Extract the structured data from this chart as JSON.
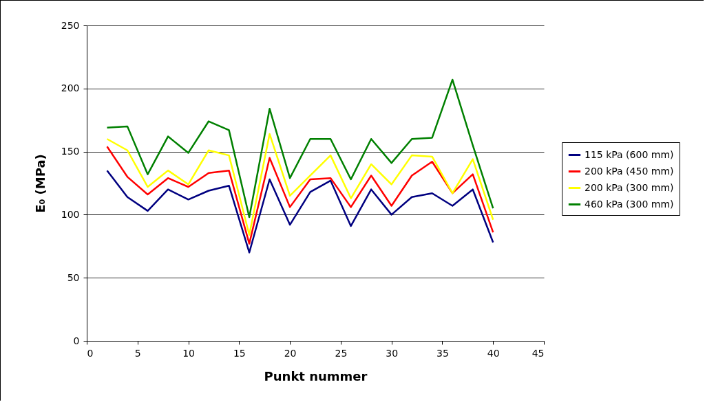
{
  "chart_data": {
    "type": "line",
    "xlabel": "Punkt nummer",
    "ylabel": "E₀ (MPa)",
    "x": [
      2,
      4,
      6,
      8,
      10,
      12,
      14,
      16,
      18,
      20,
      22,
      24,
      26,
      28,
      30,
      32,
      34,
      36,
      38,
      40
    ],
    "xlim": [
      0,
      45
    ],
    "xticks": [
      0,
      5,
      10,
      15,
      20,
      25,
      30,
      35,
      40,
      45
    ],
    "ylim": [
      0,
      250
    ],
    "yticks": [
      0,
      50,
      100,
      150,
      200,
      250
    ],
    "grid": "y",
    "legend": "right",
    "marker": "none",
    "line_style": "solid",
    "series": [
      {
        "name": "115 kPa (600 mm)",
        "color": "#000080",
        "values": [
          135,
          114,
          103,
          120,
          112,
          119,
          123,
          70,
          128,
          92,
          118,
          127,
          91,
          120,
          100,
          114,
          117,
          107,
          120,
          78
        ]
      },
      {
        "name": "200 kPa (450 mm)",
        "color": "#ff0000",
        "values": [
          154,
          130,
          116,
          129,
          122,
          133,
          135,
          77,
          145,
          106,
          128,
          129,
          106,
          131,
          107,
          131,
          142,
          117,
          132,
          86
        ]
      },
      {
        "name": "200 kPa (300 mm)",
        "color": "#ffff00",
        "values": [
          160,
          151,
          122,
          135,
          124,
          151,
          147,
          84,
          164,
          115,
          131,
          147,
          113,
          140,
          124,
          147,
          146,
          117,
          144,
          96
        ]
      },
      {
        "name": "460 kPa (300 mm)",
        "color": "#008000",
        "values": [
          169,
          170,
          132,
          162,
          149,
          174,
          167,
          98,
          184,
          129,
          160,
          160,
          128,
          160,
          141,
          160,
          161,
          207,
          155,
          105
        ]
      }
    ]
  }
}
